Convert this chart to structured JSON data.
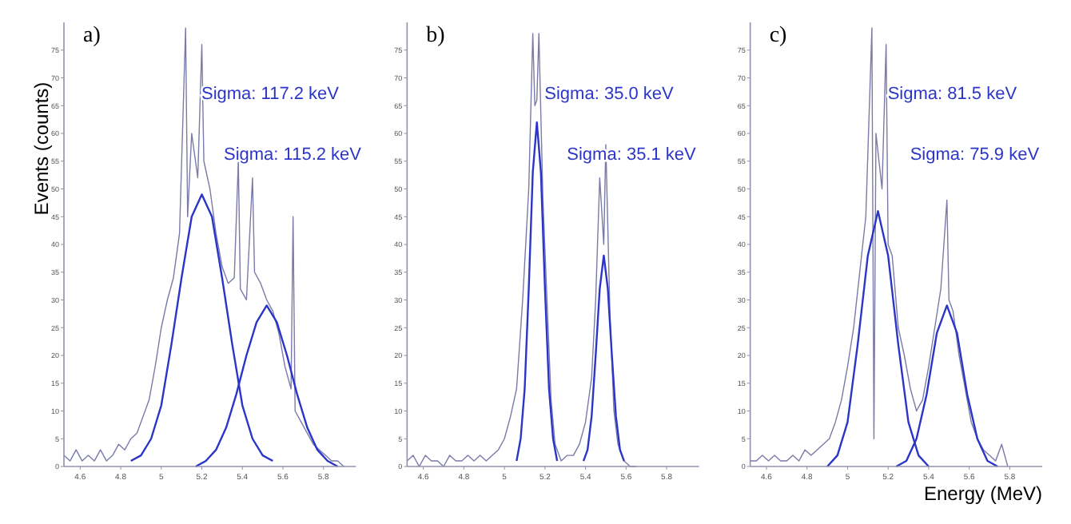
{
  "chart_data": [
    {
      "type": "line",
      "title": "a)",
      "ylabel": "Events (counts)",
      "xlim": [
        4.52,
        5.96
      ],
      "ylim": [
        0,
        80
      ],
      "xticks": [
        4.6,
        4.8,
        5,
        5.2,
        5.4,
        5.6,
        5.8
      ],
      "yticks": [
        0,
        5,
        10,
        15,
        20,
        25,
        30,
        35,
        40,
        45,
        50,
        55,
        60,
        65,
        70,
        75
      ],
      "grid": false,
      "marker": "none",
      "annotations": [
        "Sigma: 117.2 keV",
        "Sigma: 115.2 keV"
      ],
      "series": [
        {
          "color": "#7a7aa8",
          "x": [
            4.52,
            4.55,
            4.58,
            4.61,
            4.64,
            4.67,
            4.7,
            4.73,
            4.76,
            4.79,
            4.82,
            4.85,
            4.88,
            4.91,
            4.94,
            4.97,
            5,
            5.03,
            5.06,
            5.09,
            5.12,
            5.13,
            5.15,
            5.18,
            5.2,
            5.21,
            5.24,
            5.27,
            5.3,
            5.33,
            5.36,
            5.38,
            5.39,
            5.42,
            5.45,
            5.46,
            5.49,
            5.52,
            5.55,
            5.58,
            5.61,
            5.64,
            5.65,
            5.66,
            5.69,
            5.72,
            5.75,
            5.78,
            5.81,
            5.84,
            5.87,
            5.9
          ],
          "values": [
            2,
            1,
            3,
            1,
            2,
            1,
            3,
            1,
            2,
            4,
            3,
            5,
            6,
            9,
            12,
            18,
            25,
            30,
            34,
            42,
            79,
            45,
            60,
            52,
            76,
            55,
            50,
            42,
            36,
            33,
            34,
            55,
            32,
            30,
            52,
            35,
            33,
            30,
            28,
            24,
            18,
            14,
            45,
            10,
            8,
            6,
            4,
            3,
            2,
            1,
            1,
            0
          ]
        },
        {
          "color": "#2b35c8",
          "x": [
            4.85,
            4.9,
            4.95,
            5,
            5.05,
            5.1,
            5.15,
            5.2,
            5.25,
            5.3,
            5.35,
            5.4,
            5.45,
            5.5,
            5.55
          ],
          "values": [
            1,
            2,
            5,
            11,
            22,
            34,
            45,
            49,
            45,
            34,
            22,
            11,
            5,
            2,
            1
          ]
        },
        {
          "color": "#2b35c8",
          "x": [
            5.17,
            5.22,
            5.27,
            5.32,
            5.37,
            5.42,
            5.47,
            5.52,
            5.57,
            5.62,
            5.67,
            5.72,
            5.77,
            5.82,
            5.87
          ],
          "values": [
            0,
            1,
            3,
            7,
            13,
            20,
            26,
            29,
            26,
            20,
            13,
            7,
            3,
            1,
            0
          ]
        }
      ]
    },
    {
      "type": "line",
      "title": "b)",
      "xlim": [
        4.52,
        5.96
      ],
      "ylim": [
        0,
        80
      ],
      "xticks": [
        4.6,
        4.8,
        5,
        5.2,
        5.4,
        5.6,
        5.8
      ],
      "yticks": [
        0,
        5,
        10,
        15,
        20,
        25,
        30,
        35,
        40,
        45,
        50,
        55,
        60,
        65,
        70,
        75
      ],
      "grid": false,
      "marker": "none",
      "annotations": [
        "Sigma: 35.0 keV",
        "Sigma: 35.1 keV"
      ],
      "series": [
        {
          "color": "#7a7aa8",
          "x": [
            4.52,
            4.55,
            4.58,
            4.61,
            4.64,
            4.67,
            4.7,
            4.73,
            4.76,
            4.79,
            4.82,
            4.85,
            4.88,
            4.91,
            4.94,
            4.97,
            5,
            5.03,
            5.06,
            5.09,
            5.12,
            5.14,
            5.15,
            5.16,
            5.17,
            5.19,
            5.21,
            5.23,
            5.25,
            5.28,
            5.31,
            5.34,
            5.37,
            5.4,
            5.43,
            5.45,
            5.47,
            5.49,
            5.5,
            5.52,
            5.54,
            5.56,
            5.59,
            5.62,
            5.65
          ],
          "values": [
            1,
            2,
            0,
            2,
            1,
            1,
            0,
            2,
            1,
            1,
            2,
            1,
            2,
            1,
            2,
            3,
            5,
            9,
            14,
            30,
            50,
            78,
            65,
            66,
            78,
            48,
            30,
            12,
            4,
            1,
            2,
            2,
            4,
            8,
            16,
            30,
            52,
            40,
            58,
            28,
            10,
            4,
            1,
            0,
            0
          ]
        },
        {
          "color": "#2b35c8",
          "x": [
            5.06,
            5.08,
            5.1,
            5.12,
            5.14,
            5.16,
            5.18,
            5.2,
            5.22,
            5.24,
            5.26
          ],
          "values": [
            1,
            5,
            14,
            32,
            53,
            62,
            53,
            32,
            14,
            5,
            1
          ]
        },
        {
          "color": "#2b35c8",
          "x": [
            5.39,
            5.41,
            5.43,
            5.45,
            5.47,
            5.49,
            5.51,
            5.53,
            5.55,
            5.57,
            5.59
          ],
          "values": [
            1,
            3,
            9,
            20,
            32,
            38,
            32,
            20,
            9,
            3,
            1
          ]
        }
      ]
    },
    {
      "type": "line",
      "title": "c)",
      "xlabel": "Energy (MeV)",
      "xlim": [
        4.52,
        5.96
      ],
      "ylim": [
        0,
        80
      ],
      "xticks": [
        4.6,
        4.8,
        5,
        5.2,
        5.4,
        5.6,
        5.8
      ],
      "yticks": [
        0,
        5,
        10,
        15,
        20,
        25,
        30,
        35,
        40,
        45,
        50,
        55,
        60,
        65,
        70,
        75
      ],
      "grid": false,
      "marker": "none",
      "annotations": [
        "Sigma: 81.5 keV",
        "Sigma: 75.9 keV"
      ],
      "series": [
        {
          "color": "#7a7aa8",
          "x": [
            4.52,
            4.55,
            4.58,
            4.61,
            4.64,
            4.67,
            4.7,
            4.73,
            4.76,
            4.79,
            4.82,
            4.85,
            4.88,
            4.91,
            4.94,
            4.97,
            5,
            5.03,
            5.06,
            5.09,
            5.12,
            5.13,
            5.14,
            5.17,
            5.19,
            5.2,
            5.22,
            5.25,
            5.28,
            5.31,
            5.34,
            5.37,
            5.4,
            5.43,
            5.46,
            5.49,
            5.5,
            5.52,
            5.55,
            5.58,
            5.61,
            5.64,
            5.67,
            5.7,
            5.73,
            5.76,
            5.79
          ],
          "values": [
            1,
            1,
            2,
            1,
            2,
            1,
            1,
            2,
            1,
            3,
            2,
            3,
            4,
            5,
            8,
            12,
            18,
            25,
            35,
            45,
            79,
            5,
            60,
            50,
            76,
            40,
            38,
            25,
            20,
            14,
            10,
            12,
            18,
            25,
            32,
            48,
            30,
            28,
            20,
            14,
            8,
            5,
            3,
            2,
            1,
            4,
            0
          ]
        },
        {
          "color": "#2b35c8",
          "x": [
            4.9,
            4.95,
            5,
            5.05,
            5.1,
            5.15,
            5.2,
            5.25,
            5.3,
            5.35,
            5.4
          ],
          "values": [
            0,
            2,
            8,
            22,
            38,
            46,
            38,
            22,
            8,
            2,
            0
          ]
        },
        {
          "color": "#2b35c8",
          "x": [
            5.24,
            5.29,
            5.34,
            5.39,
            5.44,
            5.49,
            5.54,
            5.59,
            5.64,
            5.69,
            5.74
          ],
          "values": [
            0,
            1,
            5,
            13,
            24,
            29,
            24,
            13,
            5,
            1,
            0
          ]
        }
      ]
    }
  ]
}
